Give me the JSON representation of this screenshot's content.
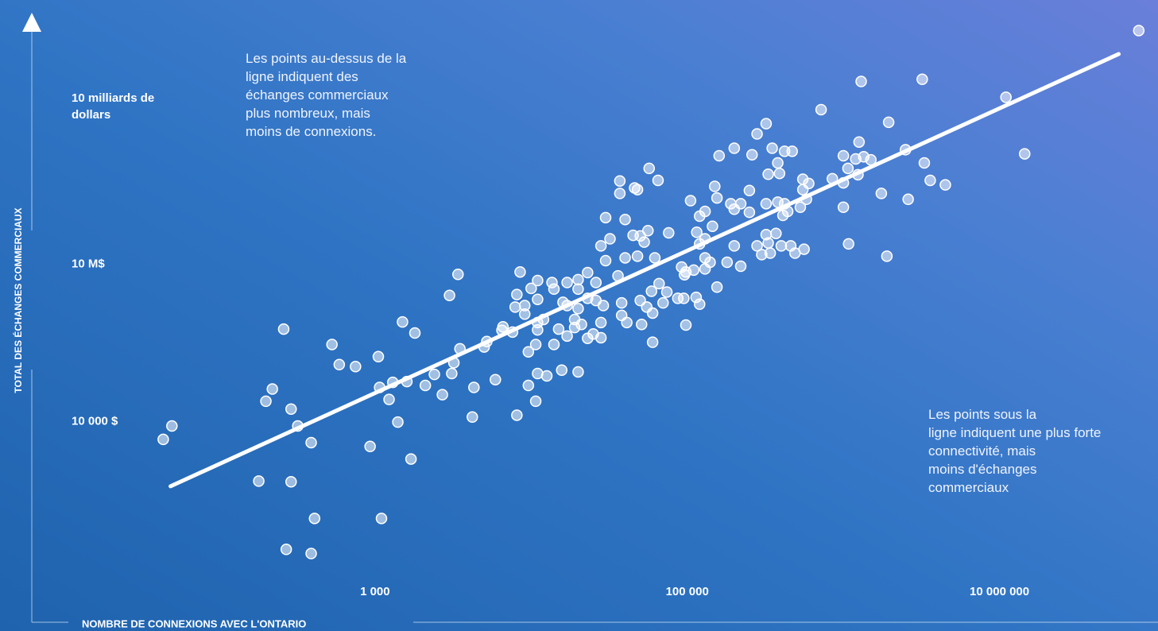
{
  "chart_data": {
    "type": "scatter",
    "xlabel": "NOMBRE DE CONNEXIONS AVEC L'ONTARIO",
    "ylabel": "TOTAL DES ÉCHANGES COMMERCIAUX",
    "annotations": [
      {
        "lines": [
          "Les points au-dessus de la",
          "ligne indiquent des",
          "échanges commerciaux",
          "plus nombreux, mais",
          "moins de connexions."
        ]
      },
      {
        "lines": [
          "Les points sous la",
          "ligne indiquent une plus forte",
          "connectivité, mais",
          "moins d'échanges",
          "commerciaux"
        ]
      }
    ],
    "xscale": "log",
    "yscale": "log",
    "xlim": [
      10,
      100000000
    ],
    "ylim": [
      1,
      1000000000000
    ],
    "xticks": [
      {
        "value": 1000,
        "label": "1 000"
      },
      {
        "value": 100000,
        "label": "100 000"
      },
      {
        "value": 10000000,
        "label": "10 000 000"
      }
    ],
    "yticks": [
      {
        "value": 10000,
        "label": "10 000 $"
      },
      {
        "value": 10000000,
        "label": "10 M$"
      },
      {
        "value": 10000000000,
        "label": "10 milliards de dollars"
      }
    ],
    "color": "#ffffff",
    "trend": {
      "x": [
        49,
        58000000
      ],
      "y": [
        575,
        100000000000
      ]
    },
    "x": [
      78000000.0,
      1300000.0,
      3200000.0,
      11000000.0,
      14500000.0,
      720000.0,
      1950000.0,
      320000.0,
      280000.0,
      200000.0,
      160000.0,
      260000.0,
      350000.0,
      420000.0,
      470000.0,
      380000.0,
      330000.0,
      390000.0,
      1260000.0,
      1000000.0,
      1200000.0,
      1350000.0,
      1500000.0,
      1070000.0,
      1240000.0,
      850000.0,
      1000000.0,
      2500000.0,
      3300000.0,
      3600000.0,
      4500000.0,
      2600000.0,
      1750000.0,
      1000000.0,
      1080000.0,
      1900000.0,
      550000.0,
      600000.0,
      550000.0,
      580000.0,
      530000.0,
      440000.0,
      410000.0,
      380000.0,
      420000.0,
      320000.0,
      250000.0,
      220000.0,
      190000.0,
      200000.0,
      250000.0,
      155000.0,
      150000.0,
      105000.0,
      130000.0,
      120000.0,
      145000.0,
      115000.0,
      130000.0,
      120000.0,
      320000.0,
      370000.0,
      330000.0,
      280000.0,
      460000.0,
      400000.0,
      490000.0,
      560000.0,
      340000.0,
      300000.0,
      200000.0,
      220000.0,
      180000.0,
      140000.0,
      130000.0,
      130000.0,
      110000.0,
      98000.0,
      92000.0,
      96000.0,
      76000.0,
      53000.0,
      56000.0,
      50000.0,
      45000.0,
      57000.0,
      65000.0,
      37000.0,
      37000.0,
      46000.0,
      48000.0,
      40000.0,
      30000.0,
      32000.0,
      28000.0,
      40000.0,
      48000.0,
      62000.0,
      30000.0,
      36000.0,
      23000.0,
      20000.0,
      17000.0,
      26000.0,
      20000.0,
      13600.0,
      11000.0,
      8500.0,
      14000.0,
      10000.0,
      8100.0,
      11000.0,
      16000.0,
      20000.0,
      17000.0,
      23000.0,
      26000.0,
      29000.0,
      38000.0,
      38000.0,
      41000.0,
      50000.0,
      55000.0,
      60000.0,
      70000.0,
      59000.0,
      66000.0,
      74000.0,
      87000.0,
      95000.0,
      114000.0,
      120000.0,
      155000.0,
      51000.0,
      60000.0,
      98000.0,
      28000.0,
      28000.0,
      25000.0,
      23000.0,
      19000.0,
      19000.0,
      21000.0,
      17000.0,
      15000.0,
      14000.0,
      12000.0,
      11000.0,
      11000.0,
      10700.0,
      9600.0,
      9100.0,
      9100.0,
      7600.0,
      6600.0,
      7900.0,
      11000.0,
      12600.0,
      15700.0,
      20000.0,
      9600.0,
      10700.0,
      8100.0,
      5900.0,
      5200.0,
      5000.0,
      6500.0,
      4300.0,
      4200.0,
      3500.0,
      3200.0,
      3100.0,
      2400.0,
      2700.0,
      2100.0,
      3000.0,
      3400.0,
      1800.0,
      1500.0,
      1050.0,
      1070.0,
      1300.0,
      1600.0,
      1230.0,
      1400.0,
      1700.0,
      930,
      1100.0,
      750,
      590,
      530,
      260,
      220,
      200,
      290,
      320,
      390,
      180,
      290,
      410,
      270,
      390,
      50,
      44
    ],
    "y": [
      280000000000.0,
      30000000000.0,
      33000000000.0,
      15000000000.0,
      1250000000.0,
      8700000000.0,
      5000000000.0,
      4700000000.0,
      3000000000.0,
      1600000000.0,
      1150000000.0,
      1200000000.0,
      1600000000.0,
      1400000000.0,
      1400000000.0,
      840000000.0,
      510000000.0,
      530000000.0,
      2100000000.0,
      1150000000.0,
      1000000000.0,
      1100000000.0,
      960000000.0,
      660000000.0,
      500000000.0,
      420000000.0,
      350000000.0,
      1500000000.0,
      840000000.0,
      390000000.0,
      320000000.0,
      170000000.0,
      220000000.0,
      120000000.0,
      24000000.0,
      14000000.0,
      410000000.0,
      340000000.0,
      260000000.0,
      170000000.0,
      120000000.0,
      100000000.0,
      84000000.0,
      150000000.0,
      140000000.0,
      140000000.0,
      250000000.0,
      140000000.0,
      140000000.0,
      110000000.0,
      96000000.0,
      180000000.0,
      300000000.0,
      160000000.0,
      100000000.0,
      81000000.0,
      52000000.0,
      40000000.0,
      30000000.0,
      24000000.0,
      36000000.0,
      38000000.0,
      25000000.0,
      22000000.0,
      22000000.0,
      22000000.0,
      16000000.0,
      19000000.0,
      16000000.0,
      15000000.0,
      22000000.0,
      9000000.0,
      10700000.0,
      10700000.0,
      13000000.0,
      8000000.0,
      7600000.0,
      7000000.0,
      8700000.0,
      6200000.0,
      39000000.0,
      26000000.0,
      43000000.0,
      34000000.0,
      35000000.0,
      660000000.0,
      390000000.0,
      380000000.0,
      220000000.0,
      280000000.0,
      260000000.0,
      70000000.0,
      76000000.0,
      30000000.0,
      22000000.0,
      13000000.0,
      14000000.0,
      13000000.0,
      11500000.0,
      5900000.0,
      6800000.0,
      5000000.0,
      4400000.0,
      4400000.0,
      3300000.0,
      4400000.0,
      4800000.0,
      7000000.0,
      3300000.0,
      3400000.0,
      2600000.0,
      2100000.0,
      1850000.0,
      1400000.0,
      1600000.0,
      2200000.0,
      2000000.0,
      1600000.0,
      1800000.0,
      1040000.0,
      760000.0,
      2000000.0,
      1500000.0,
      1150000.0,
      1800000.0,
      3000000.0,
      4200000.0,
      2900000.0,
      2200000.0,
      2200000.0,
      2300000.0,
      1700000.0,
      3600000.0,
      700000.0,
      320000.0,
      680000.0,
      760000.0,
      390000.0,
      460000.0,
      380000.0,
      870000.0,
      610000.0,
      700000.0,
      420000.0,
      570000.0,
      290000.0,
      870000.0,
      760000.0,
      550000.0,
      290000.0,
      210000.0,
      1100000.0,
      1600000.0,
      500000.0,
      630000.0,
      1500000.0,
      81000.0,
      73000.0,
      94000.0,
      87000.0,
      48000.0,
      24000.0,
      13000.0,
      62000.0,
      330000.0,
      260000.0,
      540000.0,
      44000.0,
      12000.0,
      240000.0,
      130000.0,
      81000.0,
      78000.0,
      32000.0,
      48000.0,
      2500000.0,
      6300000.0,
      480000.0,
      780000.0,
      170000.0,
      44000.0,
      55000.0,
      57000.0,
      26000.0,
      9600.0,
      1900.0,
      3300.0,
      140,
      110000.0,
      120000.0,
      290000.0,
      570000.0,
      41000.0,
      24000.0,
      17000.0,
      8100.0,
      3900.0,
      720,
      700,
      140,
      36,
      30,
      8100.0,
      4500.0
    ]
  }
}
